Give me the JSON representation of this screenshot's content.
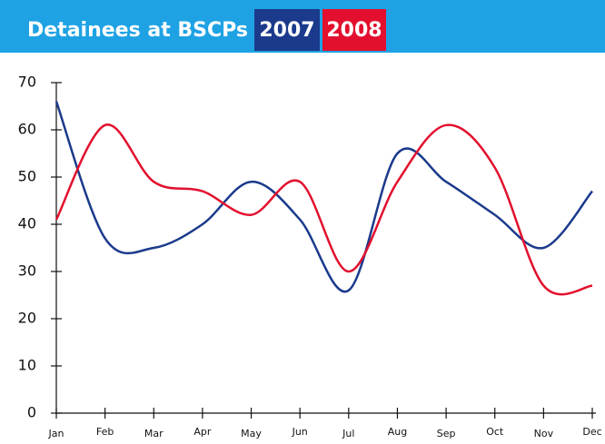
{
  "chart_data": {
    "type": "line",
    "title": "Detainees at BSCPs",
    "categories": [
      "Jan",
      "Feb",
      "Mar",
      "Apr",
      "May",
      "Jun",
      "Jul",
      "Aug",
      "Sep",
      "Oct",
      "Nov",
      "Dec"
    ],
    "series": [
      {
        "name": "2007",
        "color": "#1b3a8c",
        "values": [
          66,
          37,
          35,
          40,
          49,
          41,
          26,
          55,
          49,
          42,
          35,
          47
        ]
      },
      {
        "name": "2008",
        "color": "#e2102e",
        "values": [
          41,
          61,
          49,
          47,
          42,
          49,
          30,
          49,
          61,
          52,
          27,
          27
        ]
      }
    ],
    "ylim": [
      0,
      70
    ],
    "yticks": [
      0,
      10,
      20,
      30,
      40,
      50,
      60,
      70
    ],
    "grid": false,
    "smooth": true
  }
}
